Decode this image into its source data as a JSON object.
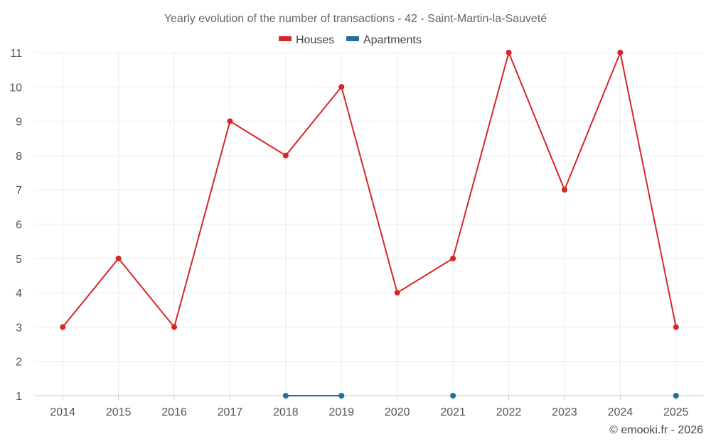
{
  "chart_data": {
    "type": "line",
    "title": "Yearly evolution of the number of transactions - 42 - Saint-Martin-la-Sauveté",
    "xlabel": "",
    "ylabel": "",
    "categories": [
      "2014",
      "2015",
      "2016",
      "2017",
      "2018",
      "2019",
      "2020",
      "2021",
      "2022",
      "2023",
      "2024",
      "2025"
    ],
    "ylim": [
      1,
      11
    ],
    "yticks": [
      1,
      2,
      3,
      4,
      5,
      6,
      7,
      8,
      9,
      10,
      11
    ],
    "grid": true,
    "legend_position": "top-center",
    "series": [
      {
        "name": "Houses",
        "color": "#d62728",
        "values": [
          3,
          5,
          3,
          9,
          8,
          10,
          4,
          5,
          11,
          7,
          11,
          3
        ]
      },
      {
        "name": "Apartments",
        "color": "#1f6fa0",
        "values": [
          null,
          null,
          null,
          null,
          1,
          1,
          null,
          1,
          null,
          null,
          null,
          1
        ]
      }
    ]
  },
  "credit": "© emooki.fr - 2026"
}
